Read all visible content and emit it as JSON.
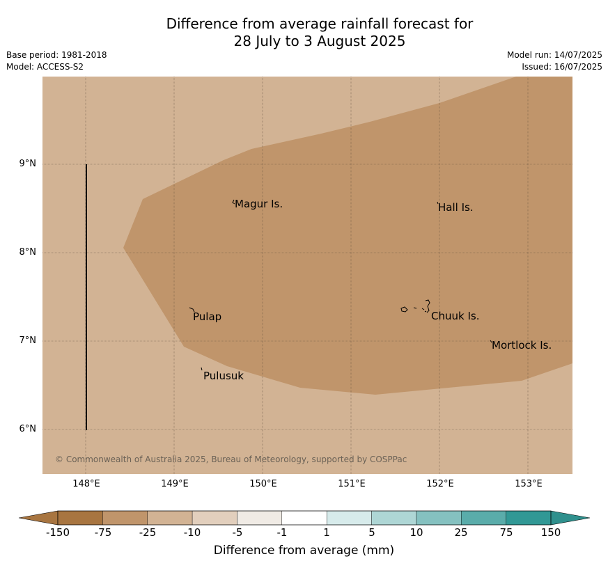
{
  "title": {
    "line1": "Difference from average rainfall forecast for",
    "line2": "28 July to 3 August 2025"
  },
  "meta": {
    "base_period": "Base period: 1981-2018",
    "model": "Model: ACCESS-S2",
    "model_run": "Model run: 14/07/2025",
    "issued": "Issued: 16/07/2025"
  },
  "map": {
    "lon_range": [
      147.5,
      153.5
    ],
    "lat_range": [
      5.5,
      10.0
    ],
    "lat_ticks": [
      "9°N",
      "8°N",
      "7°N",
      "6°N"
    ],
    "lon_ticks": [
      "148°E",
      "149°E",
      "150°E",
      "151°E",
      "152°E",
      "153°E"
    ],
    "background_color": "#d2b394",
    "anomaly_color": "#c0956b",
    "places": [
      {
        "name": "Magur Is.",
        "lon": 149.7,
        "lat": 8.55
      },
      {
        "name": "Hall Is.",
        "lon": 151.98,
        "lat": 8.52
      },
      {
        "name": "Pulap",
        "lon": 149.2,
        "lat": 7.28
      },
      {
        "name": "Chuuk Is.",
        "lon": 151.88,
        "lat": 7.29
      },
      {
        "name": "Mortlock Is.",
        "lon": 152.6,
        "lat": 6.96
      },
      {
        "name": "Pulusuk",
        "lon": 149.32,
        "lat": 6.61
      }
    ],
    "copyright": "© Commonwealth of Australia 2025, Bureau of Meteorology, supported by COSPPac"
  },
  "colorbar": {
    "ticks": [
      "-150",
      "-75",
      "-25",
      "-10",
      "-5",
      "-1",
      "1",
      "5",
      "10",
      "25",
      "75",
      "150"
    ],
    "colors": [
      "#a87540",
      "#c0956b",
      "#d2b394",
      "#e2cfbd",
      "#f0ebe5",
      "#ffffff",
      "#d7ebeb",
      "#aed6d5",
      "#85c1c0",
      "#5aacaa",
      "#319895"
    ],
    "under_color": "#a87540",
    "over_color": "#2f908d",
    "label": "Difference from average (mm)"
  }
}
